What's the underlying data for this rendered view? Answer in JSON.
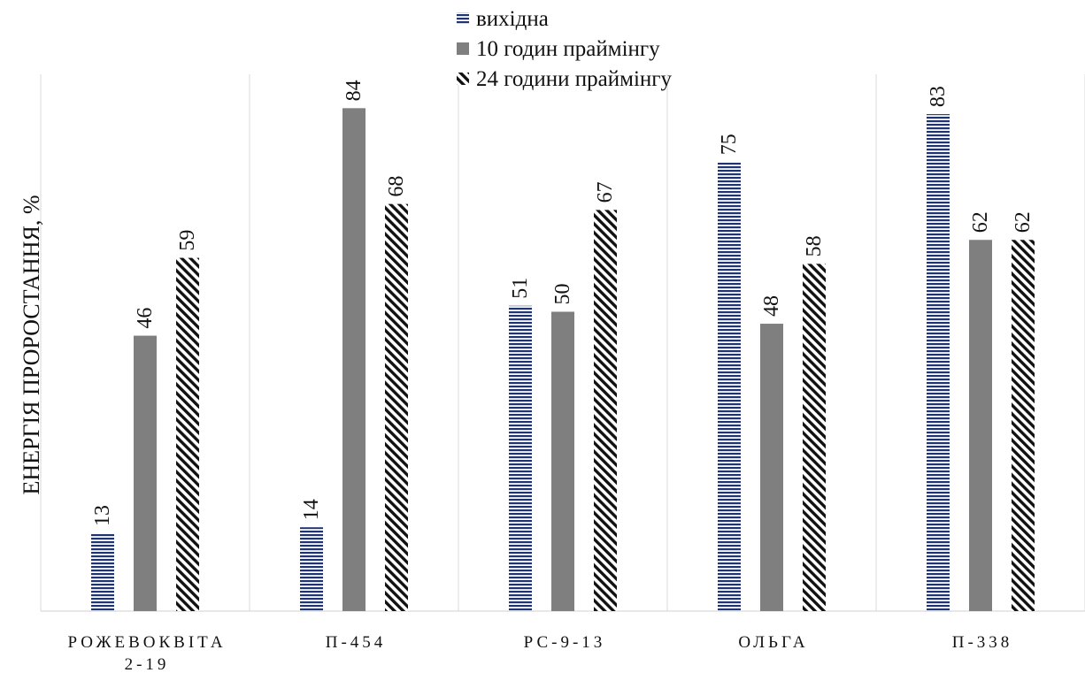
{
  "chart_data": {
    "type": "bar",
    "ylabel": "ЕНЕРГІЯ ПРОРОСТАННЯ, %",
    "ylim": [
      0,
      100
    ],
    "grid": "vertical-separators",
    "legend_position": "top",
    "categories": [
      [
        "РОЖЕВОКВІТА",
        "2-19"
      ],
      [
        "П-454"
      ],
      [
        "РС-9-13"
      ],
      [
        "ОЛЬГА"
      ],
      [
        "П-338"
      ]
    ],
    "series": [
      {
        "name": "вихідна",
        "pattern": "horizontal-stripes",
        "color": "#1f3470",
        "values": [
          13,
          14,
          51,
          75,
          83
        ]
      },
      {
        "name": "10 годин праймінгу",
        "pattern": "solid",
        "color": "#7f7f7f",
        "values": [
          46,
          84,
          50,
          48,
          62
        ]
      },
      {
        "name": "24 години праймінгу",
        "pattern": "diagonal-hatch",
        "color": "#111111",
        "values": [
          59,
          68,
          67,
          58,
          62
        ]
      }
    ]
  }
}
